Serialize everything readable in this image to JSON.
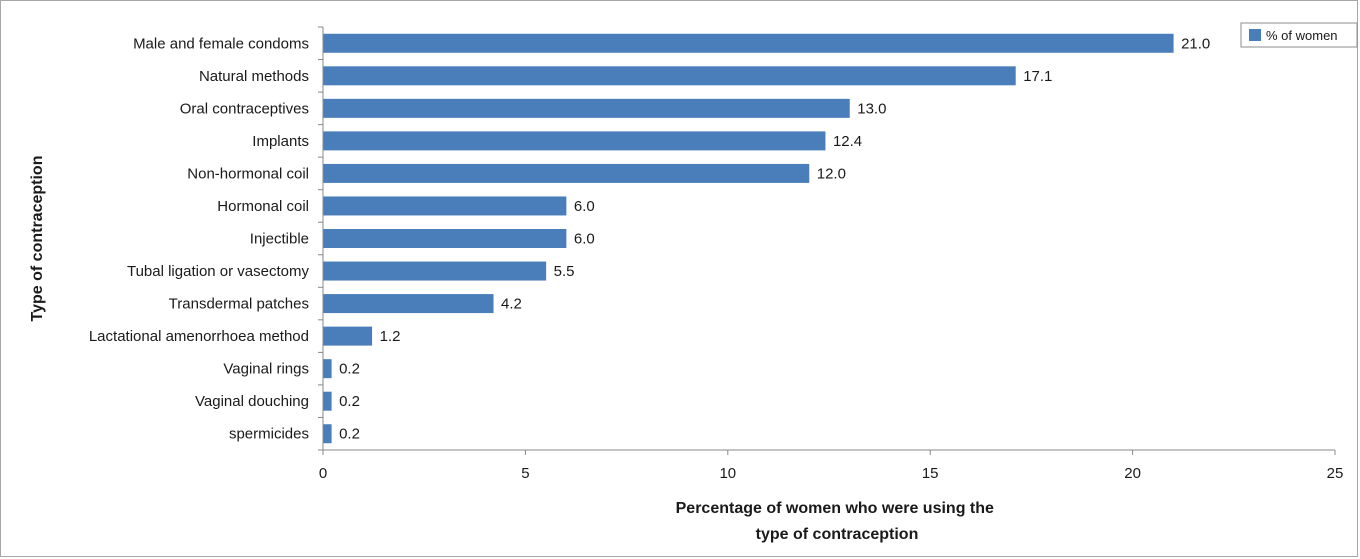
{
  "chart_data": {
    "type": "bar",
    "orientation": "horizontal",
    "categories": [
      "Male and female condoms",
      "Natural methods",
      "Oral contraceptives",
      "Implants",
      "Non-hormonal coil",
      "Hormonal coil",
      "Injectible",
      "Tubal ligation or vasectomy",
      "Transdermal patches",
      "Lactational amenorrhoea method",
      "Vaginal rings",
      "Vaginal douching",
      "spermicides"
    ],
    "series": [
      {
        "name": "% of women",
        "values": [
          21.0,
          17.1,
          13.0,
          12.4,
          12.0,
          6.0,
          6.0,
          5.5,
          4.2,
          1.2,
          0.2,
          0.2,
          0.2
        ],
        "labels": [
          "21.0",
          "17.1",
          "13.0",
          "12.4",
          "12.0",
          "6.0",
          "6.0",
          "5.5",
          "4.2",
          "1.2",
          "0.2",
          "0.2",
          "0.2"
        ],
        "color": "#4a7ebb"
      }
    ],
    "title": "",
    "xlabel": "Percentage of women who were using the type of contraception",
    "xlabel_lines": [
      "Percentage of women who were using the",
      "type of contraception"
    ],
    "ylabel": "Type of contraception",
    "xlim": [
      0,
      25
    ],
    "xticks": [
      0,
      5,
      10,
      15,
      20,
      25
    ],
    "grid": false,
    "legend": {
      "placement": "top-right",
      "entries": [
        "% of women"
      ]
    }
  }
}
